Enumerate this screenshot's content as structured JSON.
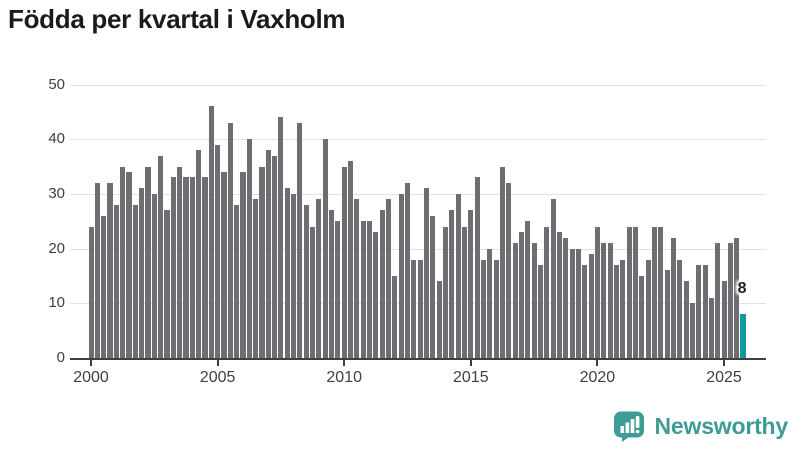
{
  "chart_data": {
    "type": "bar",
    "title": "Födda per kvartal i Vaxholm",
    "frequency": "quarterly",
    "start_year": 2000,
    "quarters_per_year": 4,
    "x_tick_labels": [
      "2000",
      "2005",
      "2010",
      "2015",
      "2020",
      "2025"
    ],
    "y_tick_labels": [
      "0",
      "10",
      "20",
      "30",
      "40",
      "50"
    ],
    "y_ticks": [
      0,
      10,
      20,
      30,
      40,
      50
    ],
    "ylim": [
      0,
      50
    ],
    "grid": "horizontal",
    "series": [
      {
        "name": "Födda per kvartal",
        "values": [
          24,
          32,
          26,
          32,
          28,
          35,
          34,
          28,
          31,
          35,
          30,
          37,
          27,
          33,
          35,
          33,
          33,
          38,
          33,
          46,
          39,
          34,
          43,
          28,
          34,
          40,
          29,
          35,
          38,
          37,
          44,
          31,
          30,
          43,
          28,
          24,
          29,
          40,
          27,
          25,
          35,
          36,
          29,
          25,
          25,
          23,
          27,
          29,
          15,
          30,
          32,
          18,
          18,
          31,
          26,
          14,
          24,
          27,
          30,
          24,
          27,
          33,
          18,
          20,
          18,
          35,
          32,
          21,
          23,
          25,
          21,
          17,
          24,
          29,
          23,
          22,
          20,
          20,
          17,
          19,
          24,
          21,
          21,
          17,
          18,
          24,
          24,
          15,
          18,
          24,
          24,
          16,
          22,
          18,
          14,
          10,
          17,
          17,
          11,
          21,
          14,
          21,
          22,
          8
        ]
      }
    ],
    "highlight_last": {
      "label": "8",
      "value": 8
    }
  },
  "colors": {
    "bar": "#6e6e72",
    "highlight": "#0d9b9b",
    "grid": "#e2e2e2",
    "axis": "#3f3f3f",
    "title": "#1b1b1b",
    "tick_label": "#3f3f3f",
    "brand": "#3d9c94"
  },
  "branding": {
    "logo_text": "Newsworthy",
    "logo_icon": "newsworthy-speech-bubble-barchart-icon"
  }
}
